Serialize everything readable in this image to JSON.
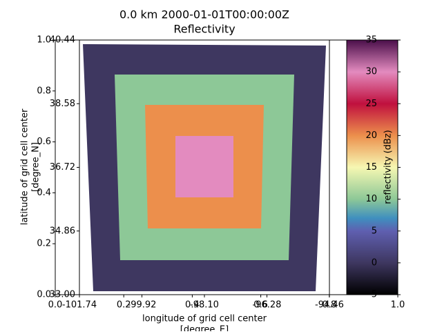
{
  "chart_data": [
    {
      "type": "axes",
      "xlim": [
        0,
        1
      ],
      "ylim": [
        0,
        1
      ],
      "xticks": [
        {
          "value": 0,
          "label": "0.0"
        },
        0.2,
        0.4,
        0.6,
        0.8,
        {
          "value": 1,
          "label": "1.0"
        }
      ],
      "yticks": [
        {
          "value": 0,
          "label": "0.0"
        },
        0.2,
        0.4,
        0.6,
        0.8,
        {
          "value": 1,
          "label": "1.0"
        }
      ]
    },
    {
      "type": "map",
      "title": "0.0 km 2000-01-01T00:00:00Z",
      "subtitle": "Reflectivity",
      "xlabel": "longitude of grid cell center",
      "xlabel_units": "[degree_E]",
      "ylabel": "latitude of grid cell center",
      "ylabel_units": "[degree_N]",
      "xlim": [
        -101.74,
        -94.46
      ],
      "ylim": [
        33,
        40.44
      ],
      "xticks": [
        -101.74,
        -99.92,
        -98.1,
        -96.28,
        -94.46
      ],
      "xtick_labels": [
        "-101.74",
        "-99.92",
        "-98.10",
        "-96.28",
        "-94.46"
      ],
      "yticks": [
        {
          "value": 33,
          "label": "33.00"
        },
        34.86,
        36.72,
        38.58,
        40.44
      ],
      "regions": [
        {
          "value": 0,
          "color": "#3e3760"
        },
        {
          "value": 10,
          "color": "#8dc897"
        },
        {
          "value": 20,
          "color": "#ec8f4c"
        },
        {
          "value": 30,
          "color": "#e38bbf"
        }
      ]
    },
    {
      "type": "colorbar",
      "label": "reflectivity (dBz)",
      "ylim": [
        -5,
        35
      ],
      "yticks": [
        -5,
        0,
        5,
        10,
        15,
        20,
        25,
        30,
        35
      ]
    }
  ]
}
